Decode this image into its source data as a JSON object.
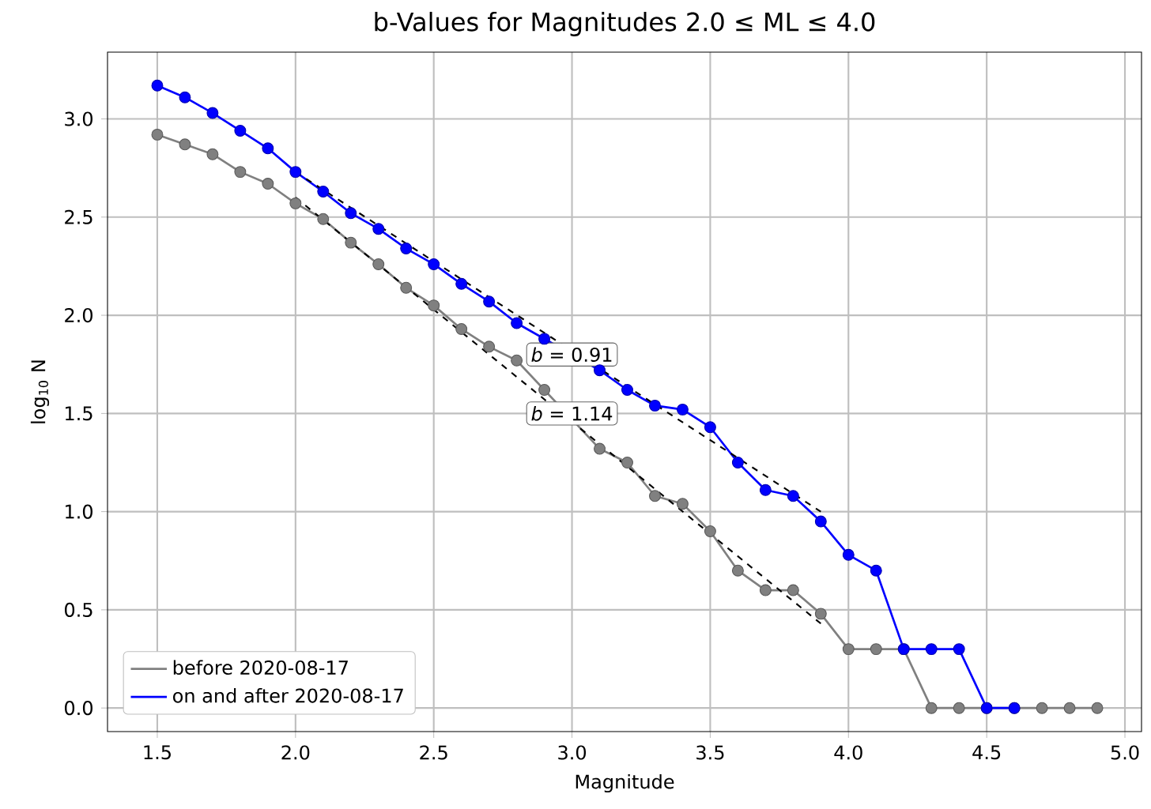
{
  "chart_data": {
    "type": "line",
    "title": "b-Values for Magnitudes 2.0 ≤ ML ≤ 4.0",
    "xlabel": "Magnitude",
    "ylabel": "log$_{10}$ N",
    "x": [
      1.5,
      1.6,
      1.7,
      1.8,
      1.9,
      2.0,
      2.1,
      2.2,
      2.3,
      2.4,
      2.5,
      2.6,
      2.7,
      2.8,
      2.9,
      3.0,
      3.1,
      3.2,
      3.3,
      3.4,
      3.5,
      3.6,
      3.7,
      3.8,
      3.9,
      4.0,
      4.1,
      4.2,
      4.3,
      4.4,
      4.5,
      4.6,
      4.7,
      4.8,
      4.9
    ],
    "series": [
      {
        "name": "before 2020-08-17",
        "color": "#808080",
        "values": [
          2.92,
          2.87,
          2.82,
          2.73,
          2.67,
          2.57,
          2.49,
          2.37,
          2.26,
          2.14,
          2.05,
          1.93,
          1.84,
          1.77,
          1.62,
          null,
          1.32,
          1.25,
          1.08,
          1.04,
          0.9,
          0.7,
          0.6,
          0.6,
          0.48,
          0.3,
          0.3,
          0.3,
          0,
          0,
          0,
          0,
          0,
          0,
          0
        ]
      },
      {
        "name": "on and after 2020-08-17",
        "color": "#0000ff",
        "x": [
          1.5,
          1.6,
          1.7,
          1.8,
          1.9,
          2.0,
          2.1,
          2.2,
          2.3,
          2.4,
          2.5,
          2.6,
          2.7,
          2.8,
          2.9,
          3.0,
          3.1,
          3.2,
          3.3,
          3.4,
          3.5,
          3.6,
          3.7,
          3.8,
          3.9,
          4.0,
          4.1,
          4.2,
          4.3,
          4.4,
          4.5,
          4.6
        ],
        "values": [
          3.17,
          3.11,
          3.03,
          2.94,
          2.85,
          2.73,
          2.63,
          2.52,
          2.44,
          2.34,
          2.26,
          2.16,
          2.07,
          1.96,
          1.88,
          null,
          1.72,
          1.62,
          1.54,
          1.52,
          1.43,
          1.25,
          1.11,
          1.08,
          0.95,
          0.78,
          0.7,
          0.3,
          0.3,
          0.3,
          0,
          0
        ]
      },
      {
        "type": "line",
        "color": "#000000",
        "line_style": "dashed",
        "marker": "none",
        "x": [
          2.0,
          3.9
        ],
        "values": [
          2.6,
          0.43
        ]
      },
      {
        "type": "line",
        "color": "#000000",
        "line_style": "dashed",
        "marker": "none",
        "x": [
          2.0,
          3.9
        ],
        "values": [
          2.73,
          1.0
        ]
      }
    ],
    "annotations": [
      {
        "text": "*b* = 0.91",
        "x": 3.0,
        "y": 1.8
      },
      {
        "text": "*b* = 1.14",
        "x": 3.0,
        "y": 1.5
      }
    ],
    "xlim": [
      1.32,
      5.06
    ],
    "ylim": [
      -0.12,
      3.34
    ],
    "xticks": [
      {
        "value": 1.5,
        "label": "1.5"
      },
      {
        "value": 2.0,
        "label": "2.0"
      },
      {
        "value": 2.5,
        "label": "2.5"
      },
      {
        "value": 3.0,
        "label": "3.0"
      },
      {
        "value": 3.5,
        "label": "3.5"
      },
      {
        "value": 4.0,
        "label": "4.0"
      },
      {
        "value": 4.5,
        "label": "4.5"
      },
      {
        "value": 5.0,
        "label": "5.0"
      }
    ],
    "yticks": [
      {
        "value": 0.0,
        "label": "0.0"
      },
      {
        "value": 0.5,
        "label": "0.5"
      },
      {
        "value": 1.0,
        "label": "1.0"
      },
      {
        "value": 1.5,
        "label": "1.5"
      },
      {
        "value": 2.0,
        "label": "2.0"
      },
      {
        "value": 2.5,
        "label": "2.5"
      },
      {
        "value": 3.0,
        "label": "3.0"
      }
    ],
    "grid": true,
    "legend": "bottom left",
    "marker": "circle",
    "line_style": "solid"
  }
}
